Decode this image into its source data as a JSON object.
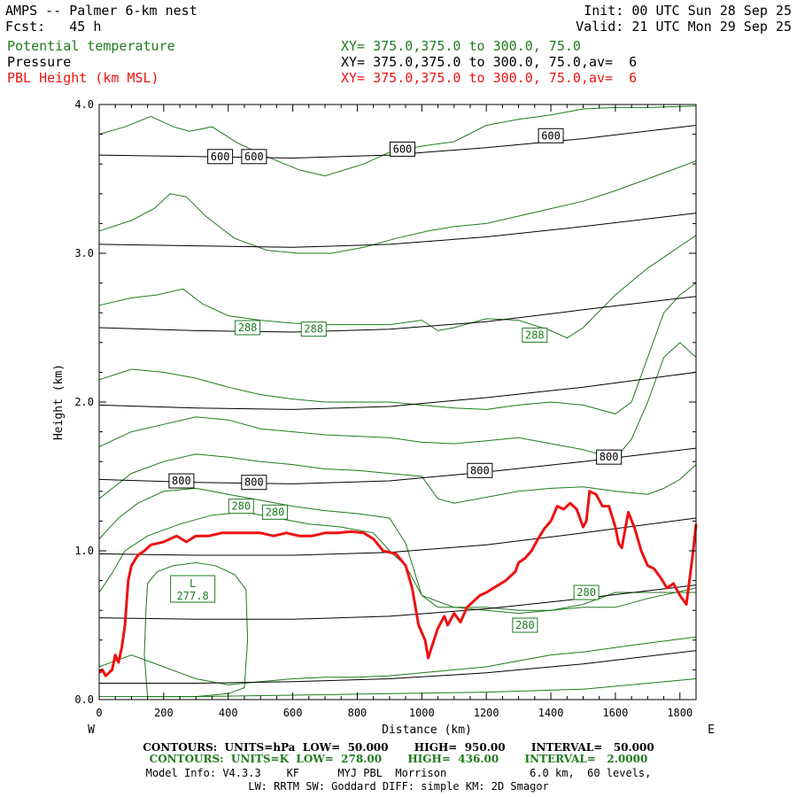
{
  "header": {
    "title": "AMPS -- Palmer 6-km nest",
    "forecast": "Fcst:   45 h",
    "init": "Init: 00 UTC Sun 28 Sep 25",
    "valid": "Valid: 21 UTC Mon 29 Sep 25",
    "fields": [
      {
        "name": "Potential temperature",
        "xy": "XY= 375.0,375.0 to 300.0, 75.0",
        "color": "#1f7a1f"
      },
      {
        "name": "Pressure",
        "xy": "XY= 375.0,375.0 to 300.0, 75.0,av=  6",
        "color": "#000000"
      },
      {
        "name": "PBL Height (km MSL)",
        "xy": "XY= 375.0,375.0 to 300.0, 75.0,av=  6",
        "color": "#ee1111"
      }
    ]
  },
  "footer": {
    "pressure_contours": "CONTOURS:  UNITS=hPa  LOW=  50.000       HIGH=  950.00       INTERVAL=   50.000",
    "theta_contours": "CONTOURS:  UNITS=K  LOW=  278.00       HIGH=  436.00       INTERVAL=   2.0000",
    "model_info_1": "Model Info: V4.3.3    KF      MYJ PBL  Morrison             6.0 km,  60 levels,",
    "model_info_2": "LW: RRTM SW: Goddard DIFF: simple KM: 2D Smagor"
  },
  "colors": {
    "pressure": "#000000",
    "theta": "#1f7a1f",
    "pbl": "#ee1111"
  },
  "chart_data": {
    "type": "line",
    "xlabel": "Distance (km)",
    "ylabel": "Height (km)",
    "xlim": [
      0,
      1850
    ],
    "ylim": [
      0,
      4
    ],
    "x_ticks": [
      0,
      200,
      400,
      600,
      800,
      1000,
      1200,
      1400,
      1600,
      1800
    ],
    "y_ticks": [
      "0.0",
      "1.0",
      "2.0",
      "3.0",
      "4.0"
    ],
    "x_left_label": "W",
    "x_right_label": "E",
    "grid": false,
    "pressure_isobars": [
      {
        "x": [
          0,
          300,
          600,
          900,
          1200,
          1500,
          1850
        ],
        "y": [
          0.11,
          0.11,
          0.12,
          0.14,
          0.18,
          0.24,
          0.33
        ]
      },
      {
        "x": [
          0,
          300,
          600,
          900,
          1200,
          1500,
          1850
        ],
        "y": [
          0.55,
          0.54,
          0.54,
          0.56,
          0.61,
          0.68,
          0.77
        ]
      },
      {
        "x": [
          0,
          300,
          600,
          900,
          1200,
          1500,
          1850
        ],
        "y": [
          0.98,
          0.97,
          0.97,
          0.99,
          1.04,
          1.12,
          1.22
        ]
      },
      {
        "x": [
          0,
          300,
          600,
          900,
          1200,
          1500,
          1850
        ],
        "y": [
          1.48,
          1.46,
          1.45,
          1.47,
          1.53,
          1.6,
          1.69
        ]
      },
      {
        "x": [
          0,
          300,
          600,
          900,
          1200,
          1500,
          1850
        ],
        "y": [
          1.98,
          1.96,
          1.95,
          1.97,
          2.03,
          2.1,
          2.2
        ]
      },
      {
        "x": [
          0,
          300,
          600,
          900,
          1200,
          1500,
          1850
        ],
        "y": [
          2.5,
          2.48,
          2.47,
          2.49,
          2.54,
          2.62,
          2.71
        ]
      },
      {
        "x": [
          0,
          300,
          600,
          900,
          1200,
          1500,
          1850
        ],
        "y": [
          3.06,
          3.05,
          3.04,
          3.06,
          3.11,
          3.18,
          3.27
        ]
      },
      {
        "x": [
          0,
          300,
          600,
          900,
          1200,
          1500,
          1850
        ],
        "y": [
          3.66,
          3.65,
          3.64,
          3.66,
          3.71,
          3.77,
          3.86
        ]
      }
    ],
    "pressure_labels": [
      {
        "text": "600",
        "x": 375,
        "y": 3.65
      },
      {
        "text": "600",
        "x": 480,
        "y": 3.65
      },
      {
        "text": "600",
        "x": 940,
        "y": 3.7
      },
      {
        "text": "600",
        "x": 1400,
        "y": 3.79
      },
      {
        "text": "800",
        "x": 255,
        "y": 1.47
      },
      {
        "text": "800",
        "x": 480,
        "y": 1.46
      },
      {
        "text": "800",
        "x": 1180,
        "y": 1.54
      },
      {
        "text": "800",
        "x": 1580,
        "y": 1.63
      }
    ],
    "theta_contours": [
      {
        "x": [
          0,
          80,
          160,
          230,
          280,
          350,
          430,
          520,
          620,
          700,
          820,
          900,
          1000,
          1100,
          1200,
          1300,
          1400,
          1500,
          1600,
          1700,
          1850
        ],
        "y": [
          3.8,
          3.85,
          3.92,
          3.85,
          3.82,
          3.85,
          3.74,
          3.65,
          3.56,
          3.52,
          3.6,
          3.68,
          3.72,
          3.75,
          3.86,
          3.9,
          3.93,
          3.97,
          3.98,
          3.98,
          3.99
        ]
      },
      {
        "x": [
          0,
          100,
          170,
          220,
          270,
          330,
          420,
          520,
          620,
          720,
          820,
          920,
          1020,
          1100,
          1200,
          1300,
          1400,
          1500,
          1600,
          1700,
          1850
        ],
        "y": [
          3.15,
          3.22,
          3.3,
          3.4,
          3.38,
          3.25,
          3.1,
          3.02,
          3.0,
          3.0,
          3.04,
          3.1,
          3.15,
          3.18,
          3.2,
          3.25,
          3.3,
          3.35,
          3.42,
          3.5,
          3.62
        ]
      },
      {
        "x": [
          0,
          100,
          180,
          260,
          320,
          400,
          500,
          600,
          700,
          800,
          900,
          1000,
          1050,
          1100,
          1200,
          1300,
          1400,
          1450,
          1500,
          1600,
          1700,
          1850
        ],
        "y": [
          2.65,
          2.7,
          2.72,
          2.76,
          2.66,
          2.58,
          2.55,
          2.53,
          2.52,
          2.52,
          2.52,
          2.55,
          2.48,
          2.5,
          2.56,
          2.55,
          2.48,
          2.43,
          2.5,
          2.72,
          2.9,
          3.12
        ]
      },
      {
        "x": [
          0,
          100,
          200,
          300,
          400,
          500,
          600,
          700,
          800,
          900,
          1000,
          1100,
          1200,
          1300,
          1400,
          1500,
          1600,
          1650,
          1700,
          1750,
          1800,
          1850
        ],
        "y": [
          2.15,
          2.22,
          2.2,
          2.16,
          2.1,
          2.05,
          2.02,
          2.0,
          2.0,
          2.0,
          1.98,
          1.96,
          1.95,
          1.98,
          2.0,
          1.98,
          1.92,
          2.0,
          2.3,
          2.6,
          2.72,
          2.8
        ]
      },
      {
        "x": [
          0,
          100,
          200,
          300,
          400,
          500,
          600,
          700,
          800,
          900,
          1000,
          1100,
          1200,
          1300,
          1400,
          1500,
          1600,
          1650,
          1700,
          1750,
          1800,
          1850
        ],
        "y": [
          1.7,
          1.8,
          1.85,
          1.9,
          1.88,
          1.82,
          1.8,
          1.78,
          1.77,
          1.76,
          1.73,
          1.72,
          1.74,
          1.76,
          1.72,
          1.68,
          1.62,
          1.75,
          2.0,
          2.3,
          2.4,
          2.3
        ]
      },
      {
        "x": [
          0,
          100,
          200,
          300,
          400,
          500,
          600,
          700,
          800,
          900,
          1000,
          1050,
          1100,
          1200,
          1300,
          1400,
          1500,
          1600,
          1700,
          1750,
          1800,
          1850
        ],
        "y": [
          1.35,
          1.52,
          1.6,
          1.65,
          1.63,
          1.6,
          1.58,
          1.55,
          1.54,
          1.52,
          1.5,
          1.35,
          1.32,
          1.36,
          1.4,
          1.42,
          1.43,
          1.4,
          1.38,
          1.42,
          1.48,
          1.58
        ]
      },
      {
        "x": [
          0,
          60,
          120,
          200,
          300,
          400,
          500,
          600,
          700,
          800,
          900,
          950,
          1000,
          1050,
          1100,
          1200,
          1300,
          1400,
          1500,
          1600,
          1700,
          1850
        ],
        "y": [
          1.08,
          1.22,
          1.32,
          1.4,
          1.42,
          1.38,
          1.34,
          1.3,
          1.27,
          1.25,
          1.22,
          1.05,
          0.7,
          0.62,
          0.62,
          0.62,
          0.6,
          0.6,
          0.62,
          0.62,
          0.68,
          0.75
        ]
      },
      {
        "x": [
          0,
          40,
          80,
          150,
          250,
          350,
          450,
          550,
          650,
          750,
          850,
          900,
          950,
          1000,
          1100,
          1200,
          1300,
          1400,
          1500,
          1600,
          1700,
          1850
        ],
        "y": [
          0.72,
          0.85,
          1.0,
          1.1,
          1.18,
          1.24,
          1.26,
          1.22,
          1.18,
          1.16,
          1.12,
          1.0,
          0.9,
          0.7,
          0.62,
          0.6,
          0.58,
          0.6,
          0.64,
          0.72,
          0.72,
          0.72
        ]
      },
      {
        "x": [
          150,
          180,
          230,
          300,
          360,
          420,
          455,
          460,
          450,
          400,
          300,
          200,
          150,
          140,
          145,
          150
        ],
        "y": [
          0.78,
          0.86,
          0.9,
          0.92,
          0.9,
          0.84,
          0.74,
          0.4,
          0.08,
          0.04,
          0.02,
          0.02,
          0.02,
          0.3,
          0.6,
          0.78
        ]
      },
      {
        "x": [
          0,
          100,
          200,
          300,
          400,
          500,
          600,
          700,
          800,
          900,
          1000,
          1100,
          1200,
          1300,
          1400,
          1500,
          1600,
          1700,
          1850
        ],
        "y": [
          0.22,
          0.3,
          0.22,
          0.14,
          0.1,
          0.12,
          0.14,
          0.15,
          0.15,
          0.16,
          0.18,
          0.2,
          0.22,
          0.26,
          0.3,
          0.32,
          0.35,
          0.38,
          0.42
        ]
      },
      {
        "x": [
          0,
          300,
          600,
          900,
          1200,
          1500,
          1850
        ],
        "y": [
          0.02,
          0.02,
          0.03,
          0.04,
          0.05,
          0.07,
          0.14
        ]
      }
    ],
    "theta_labels": [
      {
        "text": "288",
        "x": 460,
        "y": 2.5
      },
      {
        "text": "288",
        "x": 665,
        "y": 2.49
      },
      {
        "text": "288",
        "x": 1350,
        "y": 2.45
      },
      {
        "text": "280",
        "x": 440,
        "y": 1.3
      },
      {
        "text": "280",
        "x": 545,
        "y": 1.26
      },
      {
        "text": "280",
        "x": 1510,
        "y": 0.72
      },
      {
        "text": "280",
        "x": 1320,
        "y": 0.5
      }
    ],
    "low_label": {
      "letter": "L",
      "value": "277.8",
      "x": 290,
      "y": 0.75
    },
    "pbl_height": {
      "x": [
        0,
        10,
        20,
        30,
        40,
        50,
        60,
        70,
        80,
        90,
        100,
        120,
        140,
        160,
        200,
        240,
        270,
        300,
        340,
        380,
        420,
        460,
        500,
        540,
        580,
        620,
        660,
        700,
        740,
        780,
        820,
        850,
        880,
        920,
        950,
        970,
        990,
        1010,
        1020,
        1030,
        1050,
        1070,
        1080,
        1100,
        1120,
        1140,
        1160,
        1180,
        1200,
        1230,
        1260,
        1290,
        1300,
        1320,
        1340,
        1360,
        1380,
        1400,
        1420,
        1440,
        1460,
        1480,
        1500,
        1510,
        1520,
        1540,
        1560,
        1580,
        1600,
        1610,
        1620,
        1640,
        1660,
        1680,
        1700,
        1720,
        1740,
        1760,
        1780,
        1800,
        1820,
        1840,
        1850
      ],
      "y": [
        0.18,
        0.2,
        0.16,
        0.18,
        0.2,
        0.3,
        0.25,
        0.35,
        0.5,
        0.8,
        0.9,
        0.97,
        1.0,
        1.04,
        1.06,
        1.1,
        1.06,
        1.1,
        1.1,
        1.12,
        1.12,
        1.12,
        1.12,
        1.1,
        1.12,
        1.1,
        1.1,
        1.12,
        1.12,
        1.13,
        1.12,
        1.08,
        1.0,
        0.98,
        0.9,
        0.75,
        0.5,
        0.4,
        0.28,
        0.35,
        0.48,
        0.56,
        0.5,
        0.58,
        0.52,
        0.62,
        0.66,
        0.7,
        0.72,
        0.76,
        0.8,
        0.86,
        0.92,
        0.95,
        1.0,
        1.08,
        1.15,
        1.2,
        1.3,
        1.28,
        1.32,
        1.28,
        1.16,
        1.2,
        1.4,
        1.38,
        1.3,
        1.3,
        1.16,
        1.05,
        1.02,
        1.26,
        1.15,
        1.0,
        0.9,
        0.88,
        0.82,
        0.75,
        0.78,
        0.7,
        0.64,
        0.98,
        1.18
      ]
    }
  }
}
